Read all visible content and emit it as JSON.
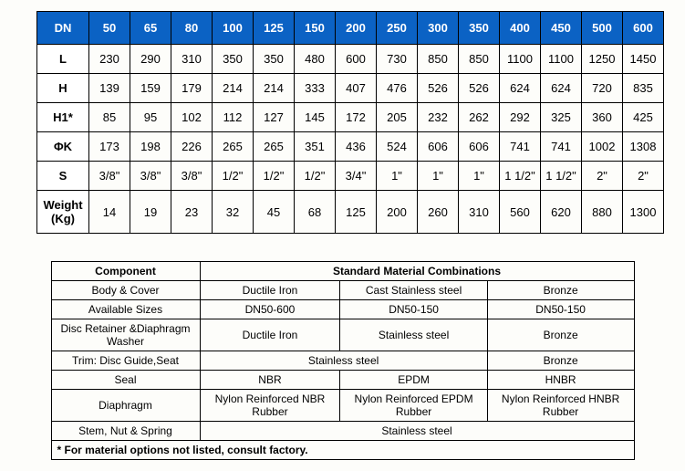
{
  "dimensions": {
    "header_label": "DN",
    "columns": [
      "50",
      "65",
      "80",
      "100",
      "125",
      "150",
      "200",
      "250",
      "300",
      "350",
      "400",
      "450",
      "500",
      "600"
    ],
    "header_bg": "#0b62c4",
    "header_fg": "#ffffff",
    "rows": [
      {
        "label": "L",
        "values": [
          "230",
          "290",
          "310",
          "350",
          "350",
          "480",
          "600",
          "730",
          "850",
          "850",
          "1100",
          "1100",
          "1250",
          "1450"
        ]
      },
      {
        "label": "H",
        "values": [
          "139",
          "159",
          "179",
          "214",
          "214",
          "333",
          "407",
          "476",
          "526",
          "526",
          "624",
          "624",
          "720",
          "835"
        ]
      },
      {
        "label": "H1*",
        "values": [
          "85",
          "95",
          "102",
          "112",
          "127",
          "145",
          "172",
          "205",
          "232",
          "262",
          "292",
          "325",
          "360",
          "425"
        ]
      },
      {
        "label": "ΦK",
        "values": [
          "173",
          "198",
          "226",
          "265",
          "265",
          "351",
          "436",
          "524",
          "606",
          "606",
          "741",
          "741",
          "1002",
          "1308"
        ]
      },
      {
        "label": "S",
        "values": [
          "3/8\"",
          "3/8\"",
          "3/8\"",
          "1/2\"",
          "1/2\"",
          "1/2\"",
          "3/4\"",
          "1\"",
          "1\"",
          "1\"",
          "1 1/2\"",
          "1 1/2\"",
          "2\"",
          "2\""
        ]
      },
      {
        "label": "Weight (Kg)",
        "values": [
          "14",
          "19",
          "23",
          "32",
          "45",
          "68",
          "125",
          "200",
          "260",
          "310",
          "560",
          "620",
          "880",
          "1300"
        ]
      }
    ]
  },
  "materials": {
    "component_header": "Component",
    "combinations_header": "Standard Material Combinations",
    "rows": [
      {
        "label": "Body & Cover",
        "cells": [
          "Ductile Iron",
          "Cast Stainless steel",
          "Bronze"
        ]
      },
      {
        "label": "Available Sizes",
        "cells": [
          "DN50-600",
          "DN50-150",
          "DN50-150"
        ]
      },
      {
        "label": "Disc Retainer &Diaphragm Washer",
        "cells": [
          "Ductile Iron",
          "Stainless steel",
          "Bronze"
        ]
      },
      {
        "label": "Trim: Disc Guide,Seat",
        "span": "Stainless steel",
        "span_after": "Bronze"
      },
      {
        "label": "Seal",
        "cells": [
          "NBR",
          "EPDM",
          "HNBR"
        ]
      },
      {
        "label": "Diaphragm",
        "cells": [
          "Nylon Reinforced NBR Rubber",
          "Nylon Reinforced EPDM Rubber",
          "Nylon Reinforced HNBR Rubber"
        ]
      },
      {
        "label": "Stem, Nut & Spring",
        "span_full": "Stainless steel"
      }
    ],
    "footnote": "* For material options not listed, consult factory."
  }
}
